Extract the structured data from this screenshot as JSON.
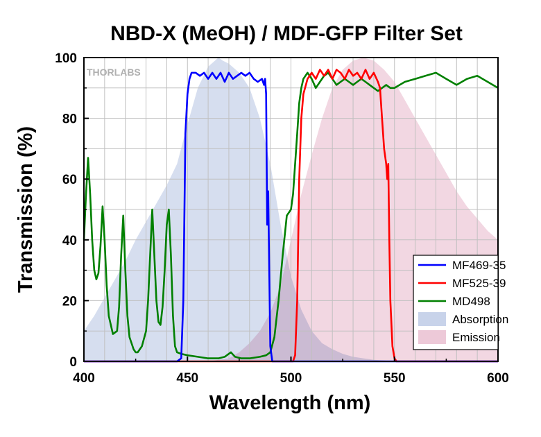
{
  "chart_data": {
    "type": "line",
    "title": "NBD-X (MeOH) / MDF-GFP Filter Set",
    "xlabel": "Wavelength (nm)",
    "ylabel": "Transmission (%)",
    "xlim": [
      400,
      600
    ],
    "ylim": [
      0,
      100
    ],
    "xticks": [
      400,
      450,
      500,
      550,
      600
    ],
    "yticks": [
      0,
      20,
      40,
      60,
      80,
      100
    ],
    "grid": true,
    "legend_position": "bottom-right",
    "watermark": "THORLABS",
    "series": [
      {
        "name": "MF469-35",
        "kind": "line",
        "color": "#0000ff",
        "x": [
          400,
          445,
          447,
          448,
          449,
          450,
          451,
          452,
          454,
          456,
          458,
          460,
          462,
          464,
          466,
          468,
          470,
          472,
          474,
          476,
          478,
          480,
          482,
          484,
          486,
          487,
          487.5,
          488,
          488.5,
          489,
          489.5,
          490,
          491,
          600
        ],
        "y": [
          0,
          0,
          1,
          20,
          75,
          88,
          93,
          95,
          95,
          94,
          95,
          93,
          95,
          93,
          95,
          92,
          95,
          93,
          94,
          95,
          94,
          95,
          93,
          92,
          93,
          91,
          93,
          88,
          45,
          56,
          30,
          5,
          0,
          0
        ]
      },
      {
        "name": "MF525-39",
        "kind": "line",
        "color": "#ff0000",
        "x": [
          400,
          501,
          502,
          503,
          504,
          505,
          506,
          508,
          510,
          512,
          514,
          516,
          518,
          520,
          522,
          524,
          526,
          528,
          530,
          532,
          534,
          536,
          538,
          540,
          542,
          543,
          544,
          545,
          546,
          546.5,
          547,
          547.5,
          548,
          549,
          550,
          551,
          600
        ],
        "y": [
          0,
          0,
          2,
          20,
          60,
          80,
          88,
          93,
          95,
          93,
          96,
          94,
          96,
          93,
          96,
          95,
          93,
          96,
          94,
          95,
          93,
          96,
          93,
          95,
          92,
          90,
          80,
          70,
          65,
          60,
          65,
          40,
          20,
          5,
          1,
          0,
          0
        ]
      },
      {
        "name": "MD498",
        "kind": "line",
        "color": "#008000",
        "x": [
          400,
          401,
          402,
          403,
          404,
          405,
          406,
          407,
          408,
          409,
          410,
          411,
          412,
          414,
          416,
          417,
          418,
          419,
          420,
          421,
          422,
          424,
          425,
          426,
          428,
          430,
          431,
          432,
          433,
          434,
          435,
          436,
          437,
          438,
          439,
          440,
          441,
          442,
          443,
          444,
          445,
          447,
          450,
          455,
          460,
          465,
          468,
          470,
          471,
          473,
          476,
          480,
          485,
          488,
          490,
          492,
          494,
          496,
          498,
          500,
          501,
          502,
          503,
          504,
          505,
          506,
          508,
          510,
          512,
          514,
          516,
          518,
          520,
          522,
          524,
          526,
          528,
          530,
          532,
          534,
          536,
          538,
          540,
          542,
          544,
          546,
          548,
          550,
          555,
          560,
          565,
          570,
          575,
          580,
          585,
          590,
          595,
          600
        ],
        "y": [
          40,
          55,
          67,
          55,
          40,
          30,
          27,
          29,
          38,
          51,
          40,
          25,
          15,
          9,
          10,
          18,
          35,
          48,
          30,
          15,
          8,
          4,
          3,
          3,
          5,
          10,
          20,
          35,
          50,
          35,
          20,
          13,
          12,
          18,
          30,
          45,
          50,
          35,
          15,
          5,
          3,
          2.5,
          2,
          1.5,
          1,
          1,
          1.5,
          2.5,
          3,
          1.5,
          1,
          1,
          1.5,
          2,
          3,
          8,
          20,
          35,
          48,
          50,
          55,
          65,
          75,
          85,
          90,
          93,
          95,
          93,
          90,
          92,
          94,
          95,
          93,
          91,
          92,
          93,
          92,
          91,
          92,
          93,
          92,
          91,
          90,
          89,
          90,
          91,
          90,
          90,
          92,
          93,
          94,
          95,
          93,
          91,
          93,
          94,
          92,
          90
        ]
      },
      {
        "name": "Absorption",
        "kind": "area",
        "color": "#c8d3ea",
        "x": [
          400,
          405,
          410,
          415,
          420,
          425,
          430,
          435,
          440,
          445,
          450,
          455,
          460,
          465,
          467,
          470,
          475,
          480,
          485,
          490,
          495,
          500,
          505,
          510,
          515,
          520,
          525,
          530,
          535,
          540,
          545,
          550,
          600
        ],
        "y": [
          10,
          15,
          21,
          27,
          33,
          40,
          46,
          52,
          58,
          65,
          78,
          90,
          97,
          100,
          99,
          98,
          95,
          90,
          80,
          65,
          45,
          28,
          17,
          10,
          6,
          4,
          2.5,
          1.5,
          1,
          0.5,
          0.3,
          0,
          0
        ]
      },
      {
        "name": "Emission",
        "kind": "area",
        "color": "#edc9d8",
        "x": [
          400,
          460,
          465,
          470,
          475,
          480,
          485,
          490,
          495,
          500,
          505,
          510,
          515,
          520,
          525,
          530,
          535,
          540,
          545,
          550,
          555,
          560,
          565,
          570,
          575,
          580,
          585,
          590,
          595,
          600
        ],
        "y": [
          0,
          0,
          0.5,
          1,
          3,
          6,
          10,
          16,
          25,
          40,
          55,
          68,
          80,
          90,
          96,
          99,
          100,
          99,
          96,
          92,
          86,
          80,
          74,
          68,
          62,
          56,
          51,
          47,
          43,
          40
        ]
      }
    ]
  }
}
